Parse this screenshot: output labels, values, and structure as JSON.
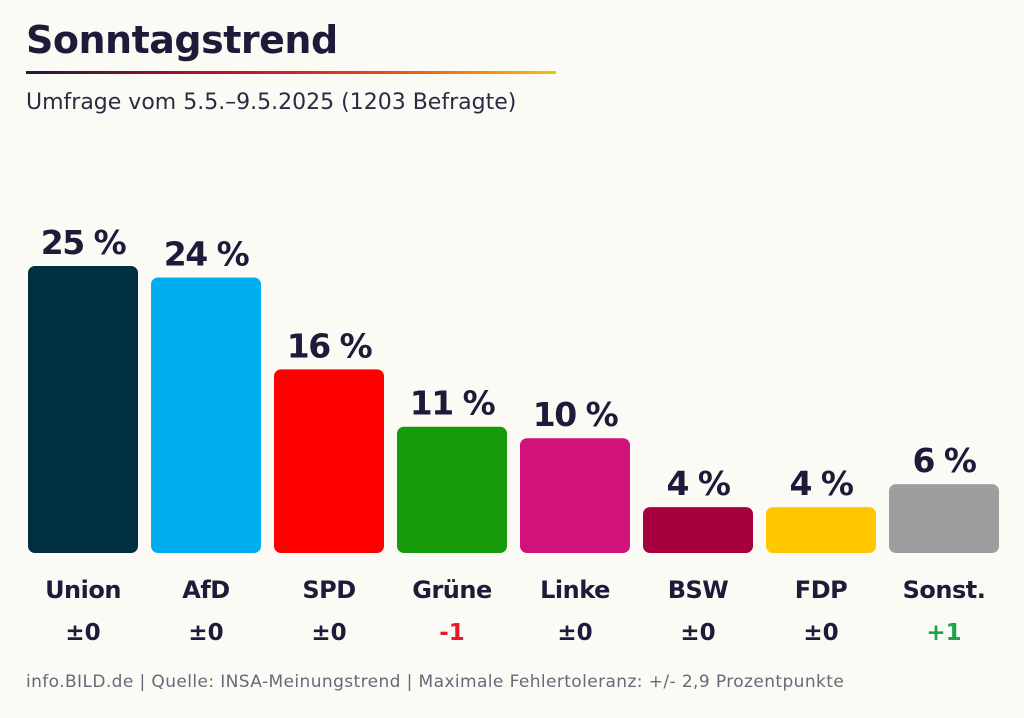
{
  "header": {
    "title": "Sonntagstrend",
    "subtitle": "Umfrage vom 5.5.–9.5.2025 (1203 Befragte)"
  },
  "footer": {
    "text": "info.BILD.de | Quelle: INSA-Meinungstrend | Maximale Fehlertoleranz: +/- 2,9 Prozentpunkte"
  },
  "chart_data": {
    "type": "bar",
    "title": "Sonntagstrend",
    "subtitle": "Umfrage vom 5.5.–9.5.2025 (1203 Befragte)",
    "categories": [
      "Union",
      "AfD",
      "SPD",
      "Grüne",
      "Linke",
      "BSW",
      "FDP",
      "Sonst."
    ],
    "values": [
      25,
      24,
      16,
      11,
      10,
      4,
      4,
      6
    ],
    "value_labels": [
      "25 %",
      "24 %",
      "16 %",
      "11 %",
      "10 %",
      "4 %",
      "4 %",
      "6 %"
    ],
    "changes": [
      "±0",
      "±0",
      "±0",
      "-1",
      "±0",
      "±0",
      "±0",
      "+1"
    ],
    "colors": [
      "#002f3f",
      "#00aeef",
      "#ff0000",
      "#159a09",
      "#d0127a",
      "#a6003f",
      "#ffc800",
      "#9e9e9e"
    ],
    "change_colors": {
      "neutral": "#1e1b3a",
      "negative": "#e8192c",
      "positive": "#1ba548"
    },
    "unit": "%",
    "ylim": [
      0,
      25
    ],
    "grid": false,
    "legend": "none"
  }
}
